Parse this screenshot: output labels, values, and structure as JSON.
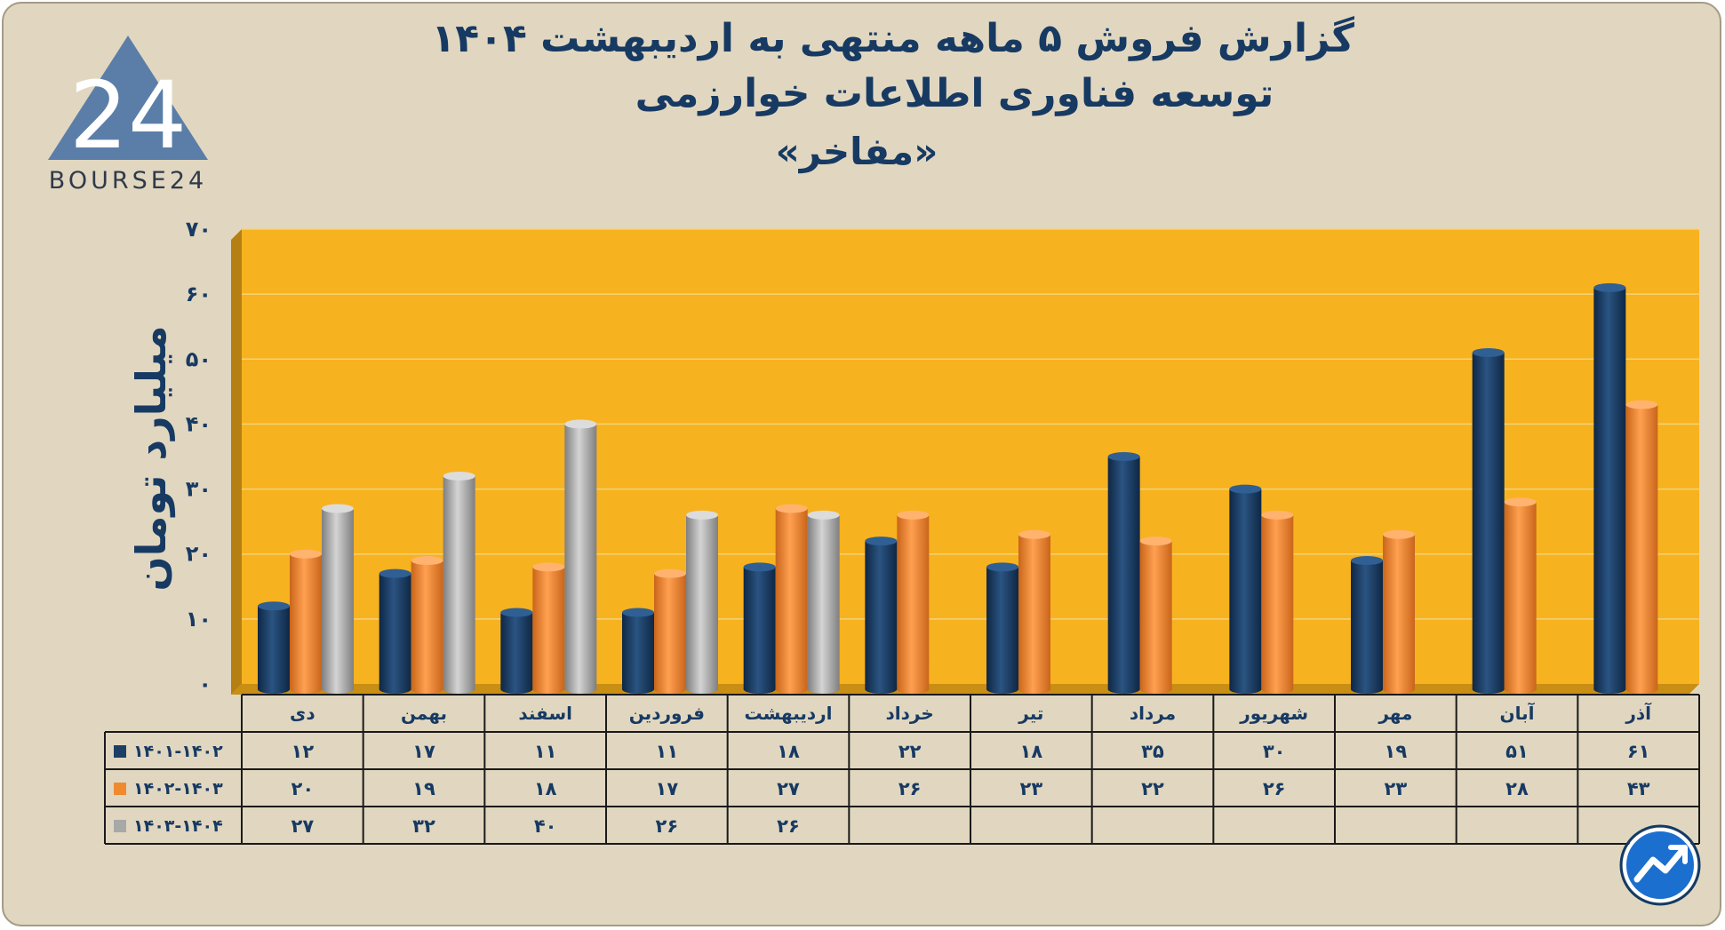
{
  "title": {
    "line1": "گزارش  فروش ۵ ماهه منتهی به اردیبهشت ۱۴۰۴",
    "line2": "توسعه فناوری اطلاعات خوارزمی",
    "line3": "«مفاخر»"
  },
  "logo": {
    "mark": "24",
    "text": "BOURSE24",
    "icon": "triangle-logo-icon"
  },
  "badge": {
    "icon": "trend-up-icon"
  },
  "colors": {
    "series": [
      "#1d3f66",
      "#f08a2e",
      "#a8a8a8"
    ],
    "plot_bg": "#f7b21f",
    "page_bg": "#e1d7c0",
    "text": "#173a63"
  },
  "chart_data": {
    "type": "bar",
    "ylabel": "میلیارد تومان",
    "ylim": [
      0,
      70
    ],
    "y_ticks": [
      "۰",
      "۱۰",
      "۲۰",
      "۳۰",
      "۴۰",
      "۵۰",
      "۶۰",
      "۷۰"
    ],
    "y_tick_values": [
      0,
      10,
      20,
      30,
      40,
      50,
      60,
      70
    ],
    "grid": true,
    "legend": "table-left",
    "categories": [
      "دی",
      "بهمن",
      "اسفند",
      "فروردین",
      "اردیبهشت",
      "خرداد",
      "تیر",
      "مرداد",
      "شهریور",
      "مهر",
      "آبان",
      "آذر"
    ],
    "series": [
      {
        "name": "۱۴۰۱-۱۴۰۲",
        "values": [
          12,
          17,
          11,
          11,
          18,
          22,
          18,
          35,
          30,
          19,
          51,
          61
        ],
        "labels": [
          "۱۲",
          "۱۷",
          "۱۱",
          "۱۱",
          "۱۸",
          "۲۲",
          "۱۸",
          "۳۵",
          "۳۰",
          "۱۹",
          "۵۱",
          "۶۱"
        ]
      },
      {
        "name": "۱۴۰۲-۱۴۰۳",
        "values": [
          20,
          19,
          18,
          17,
          27,
          26,
          23,
          22,
          26,
          23,
          28,
          43
        ],
        "labels": [
          "۲۰",
          "۱۹",
          "۱۸",
          "۱۷",
          "۲۷",
          "۲۶",
          "۲۳",
          "۲۲",
          "۲۶",
          "۲۳",
          "۲۸",
          "۴۳"
        ]
      },
      {
        "name": "۱۴۰۳-۱۴۰۴",
        "values": [
          27,
          32,
          40,
          26,
          26,
          null,
          null,
          null,
          null,
          null,
          null,
          null
        ],
        "labels": [
          "۲۷",
          "۳۲",
          "۴۰",
          "۲۶",
          "۲۶",
          "",
          "",
          "",
          "",
          "",
          "",
          ""
        ]
      }
    ]
  }
}
